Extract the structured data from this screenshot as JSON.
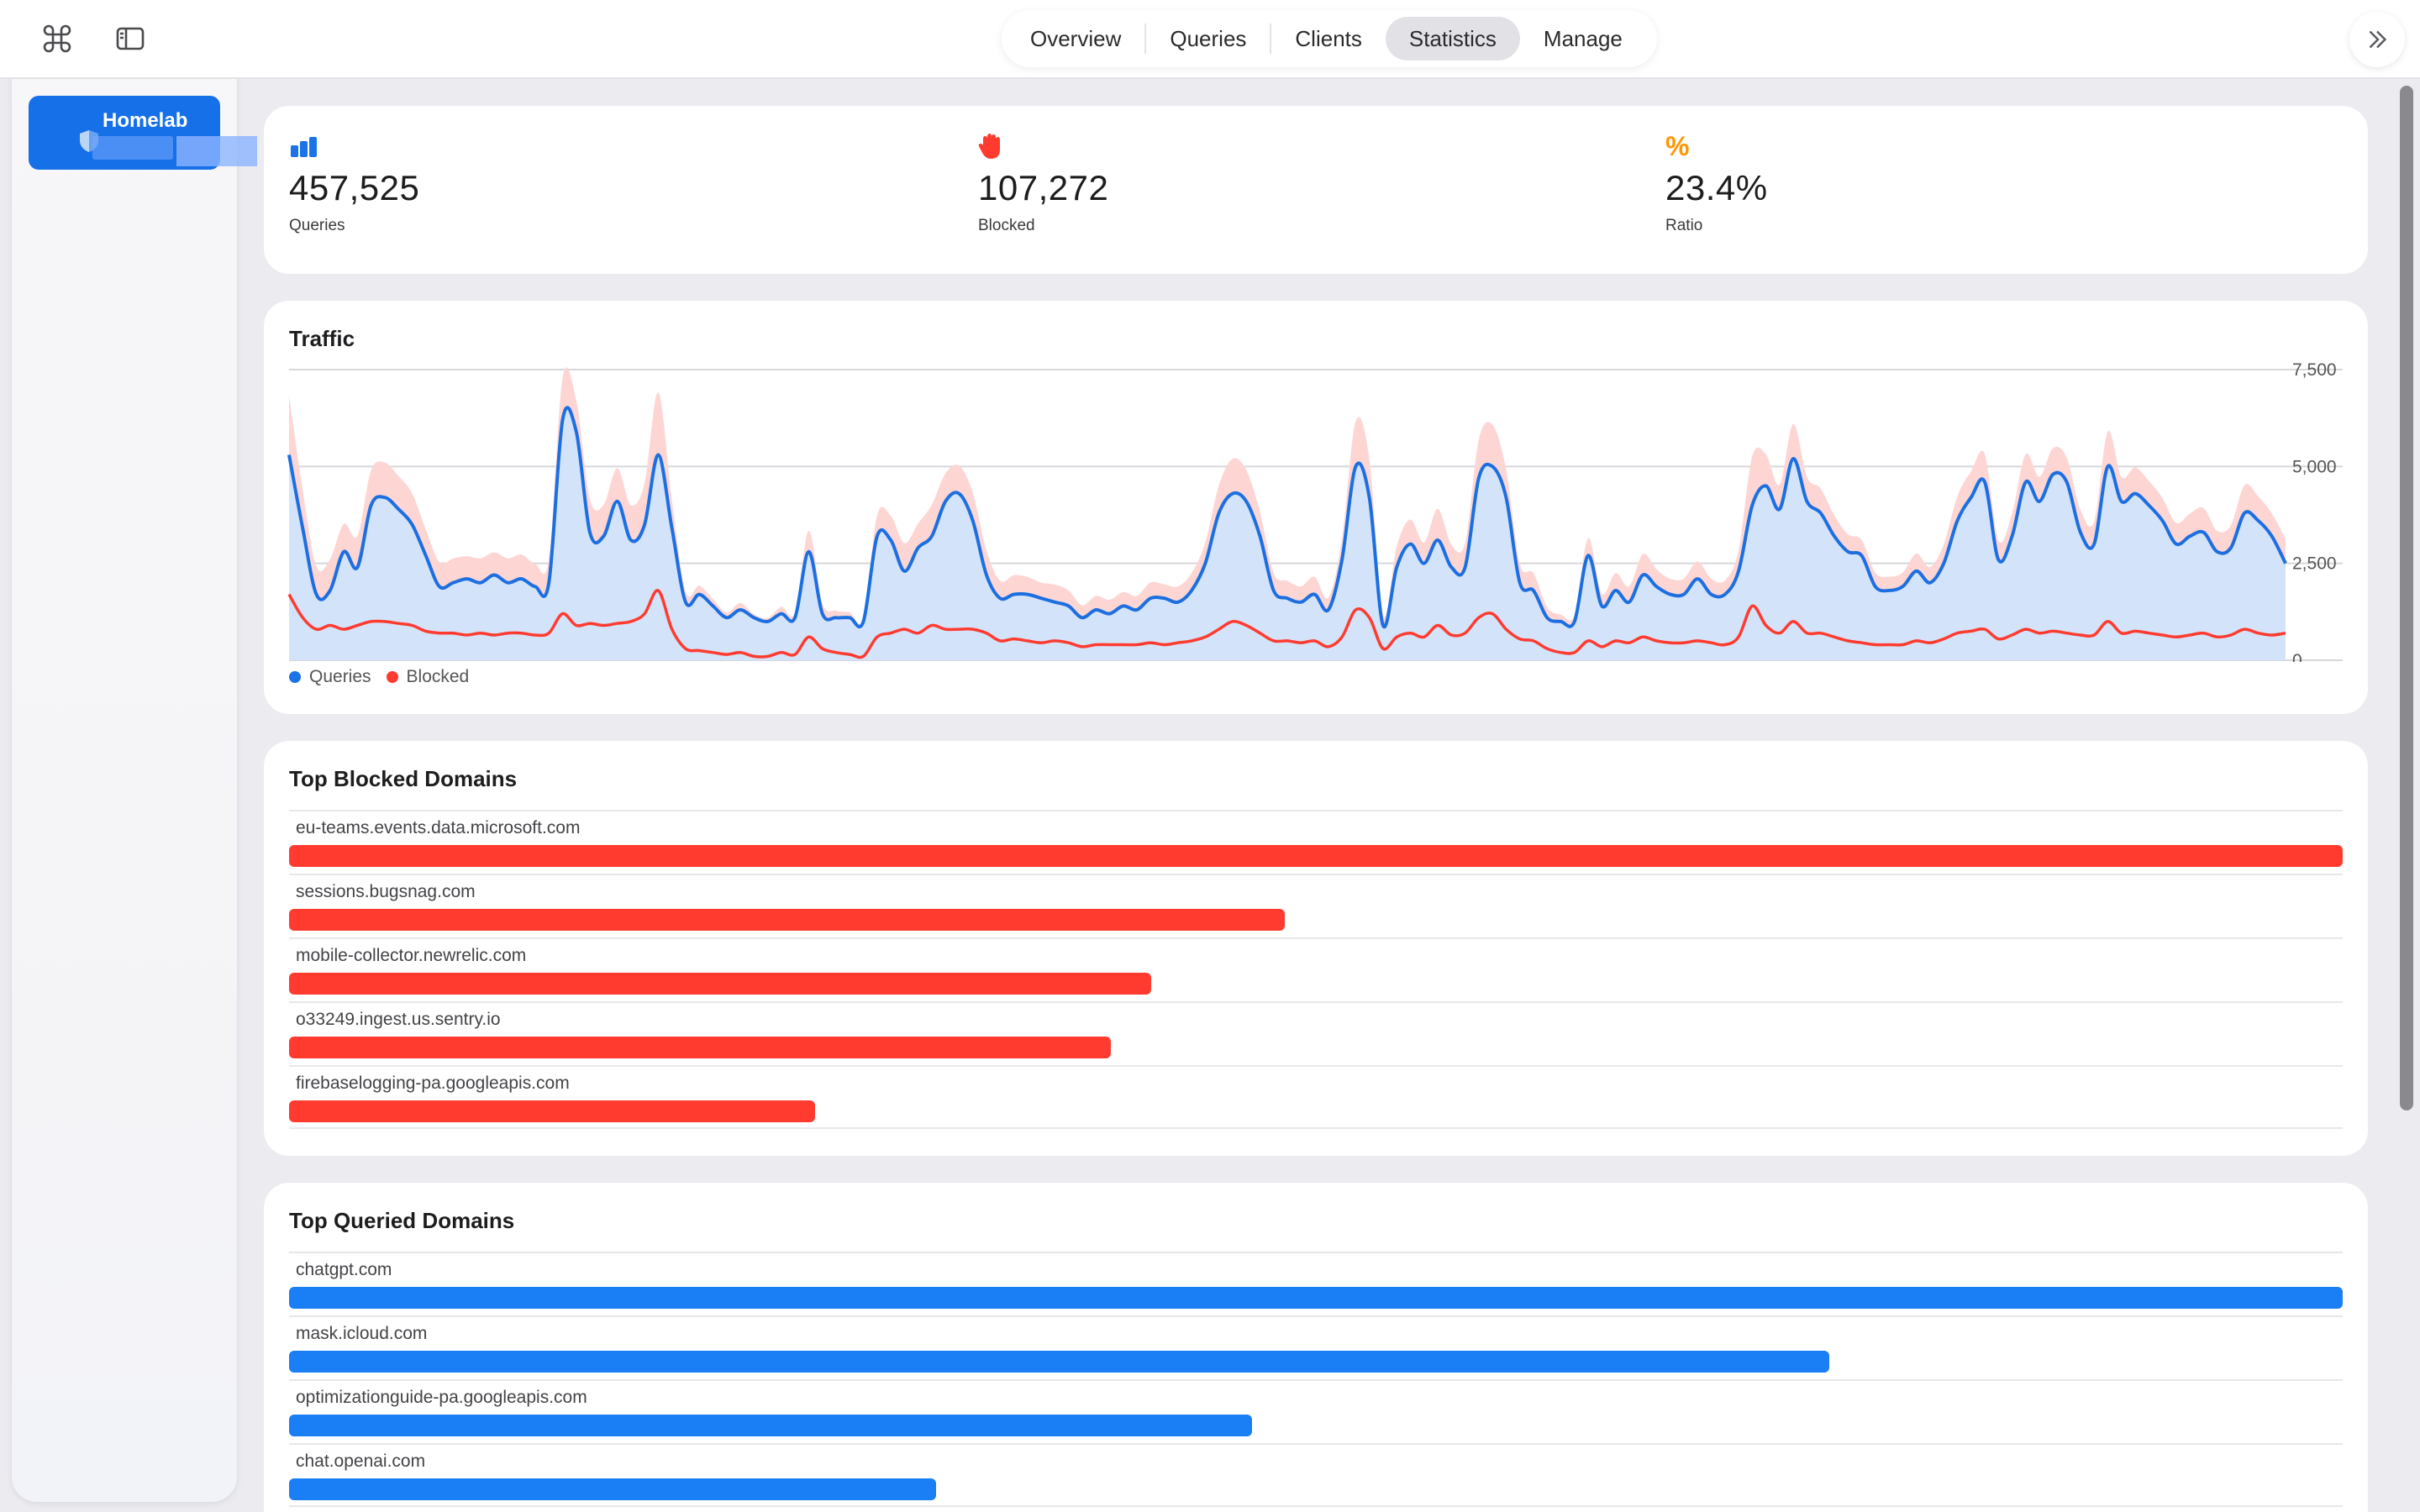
{
  "toolbar": {
    "command_icon": "command-icon",
    "sidebar_icon": "sidebar-toggle-icon",
    "expand_icon": "chevron-double-right-icon"
  },
  "tabs": [
    {
      "label": "Overview",
      "active": false
    },
    {
      "label": "Queries",
      "active": false
    },
    {
      "label": "Clients",
      "active": false
    },
    {
      "label": "Statistics",
      "active": true
    },
    {
      "label": "Manage",
      "active": false
    }
  ],
  "sidebar": {
    "server": {
      "name": "Homelab",
      "icon": "shield-icon"
    }
  },
  "stats": {
    "queries": {
      "value": "457,525",
      "label": "Queries",
      "icon": "bar-chart-icon",
      "color": "#1a73e8"
    },
    "blocked": {
      "value": "107,272",
      "label": "Blocked",
      "icon": "hand-raised-icon",
      "color": "#ff3b30"
    },
    "ratio": {
      "value": "23.4%",
      "label": "Ratio",
      "icon": "%",
      "color": "#ff9500"
    }
  },
  "traffic": {
    "title": "Traffic",
    "legend": {
      "queries": "Queries",
      "blocked": "Blocked"
    }
  },
  "chart_data": {
    "type": "area",
    "title": "Traffic",
    "ylim": [
      0,
      7500
    ],
    "yticks": [
      "7,500",
      "5,000",
      "2,500",
      "0"
    ],
    "ytick_values": [
      7500,
      5000,
      2500,
      0
    ],
    "grid": true,
    "legend_position": "bottom-left",
    "series": [
      {
        "name": "Queries",
        "color": "#1d6fe0",
        "values": [
          5300,
          3400,
          1700,
          1800,
          2800,
          2400,
          4000,
          4200,
          3900,
          3500,
          2700,
          1900,
          2000,
          2100,
          2000,
          2200,
          2000,
          2100,
          1900,
          2000,
          6200,
          5900,
          3300,
          3200,
          4100,
          3100,
          3500,
          5300,
          3400,
          1500,
          1700,
          1400,
          1100,
          1300,
          1100,
          1000,
          1200,
          1100,
          2800,
          1200,
          1100,
          1100,
          1000,
          3200,
          3100,
          2300,
          2900,
          3200,
          4100,
          4300,
          3600,
          2200,
          1600,
          1700,
          1700,
          1600,
          1500,
          1400,
          1100,
          1300,
          1200,
          1400,
          1300,
          1600,
          1600,
          1500,
          1800,
          2500,
          3800,
          4300,
          4100,
          3200,
          1800,
          1600,
          1500,
          1700,
          1300,
          2600,
          5000,
          4200,
          900,
          2400,
          3000,
          2500,
          3100,
          2400,
          2400,
          4700,
          5000,
          4200,
          2000,
          1800,
          1100,
          1000,
          1000,
          2700,
          1400,
          1800,
          1500,
          2200,
          1900,
          1700,
          1700,
          2100,
          1700,
          1700,
          2300,
          4000,
          4500,
          3900,
          5200,
          4100,
          3800,
          3200,
          2800,
          2700,
          1900,
          1800,
          1900,
          2300,
          2000,
          2500,
          3600,
          4200,
          4600,
          2600,
          3200,
          4600,
          4100,
          4800,
          4600,
          3300,
          3000,
          5000,
          4100,
          4300,
          4000,
          3600,
          3000,
          3200,
          3300,
          2800,
          2900,
          3800,
          3600,
          3200,
          2500
        ]
      },
      {
        "name": "Blocked",
        "color": "#ff3b30",
        "values": [
          1700,
          1100,
          800,
          900,
          800,
          900,
          1000,
          1000,
          950,
          900,
          750,
          700,
          700,
          650,
          700,
          650,
          700,
          700,
          650,
          700,
          1200,
          900,
          950,
          900,
          950,
          1000,
          1200,
          1800,
          800,
          300,
          250,
          200,
          150,
          200,
          100,
          100,
          200,
          150,
          600,
          300,
          200,
          150,
          100,
          600,
          700,
          800,
          700,
          900,
          800,
          800,
          800,
          700,
          500,
          550,
          500,
          450,
          500,
          450,
          350,
          400,
          400,
          400,
          400,
          450,
          400,
          450,
          500,
          600,
          800,
          1000,
          900,
          700,
          500,
          500,
          450,
          500,
          350,
          600,
          1300,
          1100,
          300,
          600,
          700,
          600,
          900,
          650,
          700,
          1100,
          1200,
          800,
          550,
          500,
          300,
          200,
          200,
          500,
          350,
          500,
          450,
          600,
          500,
          450,
          450,
          500,
          450,
          400,
          600,
          1400,
          900,
          700,
          1000,
          700,
          700,
          600,
          500,
          450,
          400,
          400,
          400,
          500,
          450,
          550,
          700,
          750,
          800,
          550,
          650,
          800,
          700,
          750,
          700,
          650,
          650,
          1000,
          700,
          750,
          700,
          650,
          600,
          650,
          700,
          600,
          650,
          800,
          700,
          650,
          700
        ]
      }
    ]
  },
  "blocked_domains": {
    "title": "Top Blocked Domains",
    "items": [
      {
        "domain": "eu-teams.events.data.microsoft.com",
        "value": 1.0
      },
      {
        "domain": "sessions.bugsnag.com",
        "value": 0.485
      },
      {
        "domain": "mobile-collector.newrelic.com",
        "value": 0.42
      },
      {
        "domain": "o33249.ingest.us.sentry.io",
        "value": 0.4
      },
      {
        "domain": "firebaselogging-pa.googleapis.com",
        "value": 0.256
      }
    ],
    "color": "#ff3b30"
  },
  "queried_domains": {
    "title": "Top Queried Domains",
    "items": [
      {
        "domain": "chatgpt.com",
        "value": 1.0
      },
      {
        "domain": "mask.icloud.com",
        "value": 0.75
      },
      {
        "domain": "optimizationguide-pa.googleapis.com",
        "value": 0.469
      },
      {
        "domain": "chat.openai.com",
        "value": 0.315
      }
    ],
    "color": "#1a7ff5"
  }
}
